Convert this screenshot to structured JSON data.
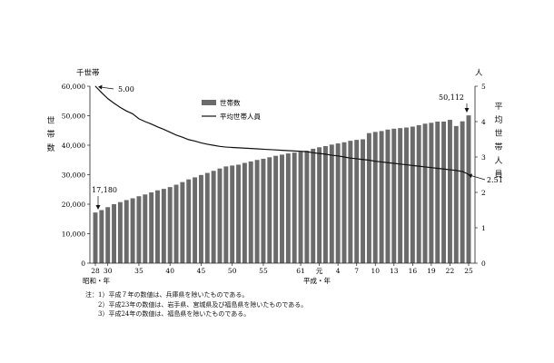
{
  "chart_data": {
    "type": "bar+line",
    "title": "",
    "left_axis": {
      "unit": "千世帯",
      "label": "世帯数",
      "range": [
        0,
        60000
      ],
      "ticks": [
        "0",
        "10,000",
        "20,000",
        "30,000",
        "40,000",
        "50,000",
        "60,000"
      ]
    },
    "right_axis": {
      "unit": "人",
      "label": "平均世帯人員",
      "range": [
        0,
        5
      ],
      "ticks": [
        "0",
        "1",
        "2",
        "3",
        "4",
        "5"
      ]
    },
    "x_tick_labels": [
      {
        "label": "28",
        "index": 0
      },
      {
        "label": "30",
        "index": 2
      },
      {
        "label": "35",
        "index": 7
      },
      {
        "label": "40",
        "index": 12
      },
      {
        "label": "45",
        "index": 17
      },
      {
        "label": "50",
        "index": 22
      },
      {
        "label": "55",
        "index": 27
      },
      {
        "label": "61",
        "index": 33
      },
      {
        "label": "元",
        "index": 36
      },
      {
        "label": "4",
        "index": 39
      },
      {
        "label": "7",
        "index": 42
      },
      {
        "label": "10",
        "index": 45
      },
      {
        "label": "13",
        "index": 48
      },
      {
        "label": "16",
        "index": 51
      },
      {
        "label": "19",
        "index": 54
      },
      {
        "label": "22",
        "index": 57
      },
      {
        "label": "25",
        "index": 60
      }
    ],
    "x_era_labels": {
      "showa": "昭和・年",
      "heisei": "平成・年"
    },
    "legend": {
      "bar": "世帯数",
      "line": "平均世帯人員",
      "position": "top-center"
    },
    "annotations": {
      "first_households": "17,180",
      "last_households": "50,112",
      "first_size": "5.00",
      "last_size": "2.51"
    },
    "series": [
      {
        "name": "世帯数",
        "type": "bar",
        "axis": "left",
        "values": [
          17180,
          18000,
          19000,
          20000,
          20700,
          21400,
          22000,
          22700,
          23300,
          24000,
          24700,
          25200,
          25800,
          26600,
          27500,
          28400,
          29100,
          29900,
          30600,
          31300,
          32100,
          32800,
          33100,
          33400,
          34000,
          34500,
          35000,
          35400,
          35900,
          36400,
          36800,
          37200,
          37500,
          37700,
          38100,
          38800,
          39300,
          39700,
          40200,
          40600,
          41000,
          41500,
          41800,
          42000,
          44100,
          44500,
          44800,
          45300,
          45600,
          45800,
          46000,
          46300,
          46800,
          47300,
          47600,
          48000,
          48000,
          48600,
          46500,
          48100,
          50112
        ]
      },
      {
        "name": "平均世帯人員",
        "type": "line",
        "axis": "right",
        "values": [
          5.0,
          4.82,
          4.65,
          4.52,
          4.4,
          4.3,
          4.22,
          4.08,
          4.0,
          3.93,
          3.85,
          3.78,
          3.7,
          3.62,
          3.56,
          3.49,
          3.45,
          3.4,
          3.36,
          3.33,
          3.3,
          3.28,
          3.27,
          3.26,
          3.25,
          3.24,
          3.23,
          3.22,
          3.21,
          3.2,
          3.19,
          3.18,
          3.17,
          3.16,
          3.15,
          3.12,
          3.1,
          3.08,
          3.05,
          3.03,
          3.0,
          2.97,
          2.95,
          2.93,
          2.91,
          2.88,
          2.86,
          2.84,
          2.82,
          2.8,
          2.78,
          2.76,
          2.74,
          2.72,
          2.7,
          2.68,
          2.66,
          2.64,
          2.62,
          2.59,
          2.51
        ]
      }
    ]
  },
  "notes": [
    "注：1）平成７年の数値は、兵庫県を除いたものである。",
    "　　2）平成23年の数値は、岩手県、宮城県及び福島県を除いたものである。",
    "　　3）平成24年の数値は、福島県を除いたものである。"
  ]
}
